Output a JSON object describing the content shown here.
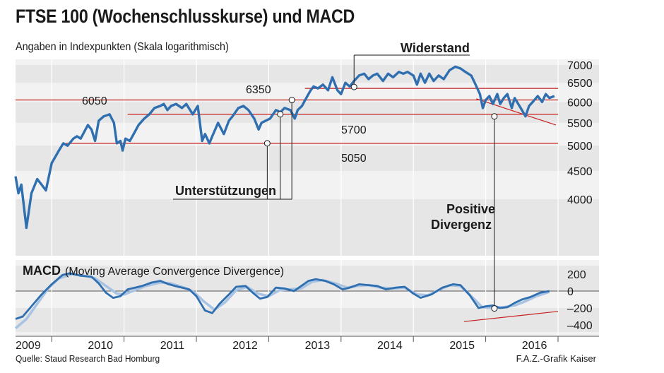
{
  "header": {
    "title": "FTSE 100 (Wochenschlusskurse) und MACD",
    "subtitle": "Angaben in Indexpunkten (Skala logarithmisch)"
  },
  "footer": {
    "source": "Quelle: Staud Research Bad Homburg",
    "credit": "F.A.Z.-Grafik Kaiser"
  },
  "colors": {
    "price_line": "#2f6fb0",
    "macd_line": "#2f6fb0",
    "signal_line": "#a9c3e3",
    "level_line": "#c81e1e",
    "band": "#e6e6e6"
  },
  "chart_data": [
    {
      "type": "line",
      "title": "FTSE 100 (Wochenschlusskurse)",
      "ylabel": "Angaben in Indexpunkten (Skala logarithmisch)",
      "yscale": "log",
      "ylim": [
        3450,
        7100
      ],
      "yticks": [
        4000,
        4500,
        5000,
        5500,
        6000,
        6500,
        7000
      ],
      "xlim": [
        2009.0,
        2016.5
      ],
      "x_tick_labels": [
        "2009",
        "2010",
        "2011",
        "2012",
        "2013",
        "2014",
        "2015",
        "2016"
      ],
      "grid": false,
      "series": [
        {
          "values": [
            [
              2009.0,
              4400
            ],
            [
              2009.04,
              4100
            ],
            [
              2009.08,
              4250
            ],
            [
              2009.15,
              3550
            ],
            [
              2009.22,
              4100
            ],
            [
              2009.3,
              4350
            ],
            [
              2009.36,
              4250
            ],
            [
              2009.42,
              4150
            ],
            [
              2009.5,
              4650
            ],
            [
              2009.6,
              4900
            ],
            [
              2009.66,
              5050
            ],
            [
              2009.72,
              5000
            ],
            [
              2009.8,
              5150
            ],
            [
              2009.85,
              5200
            ],
            [
              2009.9,
              5150
            ],
            [
              2010.0,
              5450
            ],
            [
              2010.05,
              5350
            ],
            [
              2010.1,
              5100
            ],
            [
              2010.15,
              5550
            ],
            [
              2010.22,
              5650
            ],
            [
              2010.3,
              5700
            ],
            [
              2010.36,
              5500
            ],
            [
              2010.4,
              5050
            ],
            [
              2010.45,
              5100
            ],
            [
              2010.48,
              4900
            ],
            [
              2010.52,
              5150
            ],
            [
              2010.58,
              5100
            ],
            [
              2010.65,
              5300
            ],
            [
              2010.7,
              5450
            ],
            [
              2010.78,
              5600
            ],
            [
              2010.85,
              5700
            ],
            [
              2010.92,
              5850
            ],
            [
              2011.0,
              5900
            ],
            [
              2011.05,
              5950
            ],
            [
              2011.1,
              5800
            ],
            [
              2011.15,
              5900
            ],
            [
              2011.22,
              5950
            ],
            [
              2011.3,
              5850
            ],
            [
              2011.36,
              5950
            ],
            [
              2011.45,
              5700
            ],
            [
              2011.52,
              5900
            ],
            [
              2011.58,
              5100
            ],
            [
              2011.62,
              5250
            ],
            [
              2011.68,
              5050
            ],
            [
              2011.72,
              5200
            ],
            [
              2011.8,
              5500
            ],
            [
              2011.88,
              5250
            ],
            [
              2011.95,
              5550
            ],
            [
              2012.0,
              5650
            ],
            [
              2012.08,
              5850
            ],
            [
              2012.15,
              5900
            ],
            [
              2012.22,
              5800
            ],
            [
              2012.3,
              5600
            ],
            [
              2012.36,
              5350
            ],
            [
              2012.4,
              5500
            ],
            [
              2012.46,
              5550
            ],
            [
              2012.52,
              5600
            ],
            [
              2012.6,
              5800
            ],
            [
              2012.66,
              5750
            ],
            [
              2012.72,
              5850
            ],
            [
              2012.8,
              5800
            ],
            [
              2012.86,
              5600
            ],
            [
              2012.9,
              5800
            ],
            [
              2012.96,
              5900
            ],
            [
              2013.02,
              6100
            ],
            [
              2013.08,
              6300
            ],
            [
              2013.12,
              6400
            ],
            [
              2013.18,
              6350
            ],
            [
              2013.25,
              6450
            ],
            [
              2013.32,
              6300
            ],
            [
              2013.38,
              6650
            ],
            [
              2013.45,
              6300
            ],
            [
              2013.5,
              6200
            ],
            [
              2013.56,
              6500
            ],
            [
              2013.62,
              6400
            ],
            [
              2013.68,
              6550
            ],
            [
              2013.75,
              6700
            ],
            [
              2013.82,
              6750
            ],
            [
              2013.88,
              6600
            ],
            [
              2013.94,
              6700
            ],
            [
              2014.0,
              6750
            ],
            [
              2014.08,
              6550
            ],
            [
              2014.15,
              6750
            ],
            [
              2014.22,
              6650
            ],
            [
              2014.3,
              6800
            ],
            [
              2014.36,
              6750
            ],
            [
              2014.42,
              6800
            ],
            [
              2014.5,
              6700
            ],
            [
              2014.55,
              6450
            ],
            [
              2014.6,
              6750
            ],
            [
              2014.66,
              6500
            ],
            [
              2014.72,
              6750
            ],
            [
              2014.78,
              6550
            ],
            [
              2014.85,
              6700
            ],
            [
              2014.92,
              6600
            ],
            [
              2015.0,
              6850
            ],
            [
              2015.08,
              6950
            ],
            [
              2015.15,
              6900
            ],
            [
              2015.22,
              6800
            ],
            [
              2015.3,
              6700
            ],
            [
              2015.36,
              6450
            ],
            [
              2015.42,
              6200
            ],
            [
              2015.46,
              5850
            ],
            [
              2015.5,
              6050
            ],
            [
              2015.55,
              6150
            ],
            [
              2015.6,
              5950
            ],
            [
              2015.66,
              6200
            ],
            [
              2015.7,
              5950
            ],
            [
              2015.75,
              6100
            ],
            [
              2015.8,
              6200
            ],
            [
              2015.86,
              5850
            ],
            [
              2015.9,
              6100
            ],
            [
              2015.95,
              5950
            ],
            [
              2016.0,
              5800
            ],
            [
              2016.05,
              5650
            ],
            [
              2016.1,
              5900
            ],
            [
              2016.15,
              6000
            ],
            [
              2016.22,
              6150
            ],
            [
              2016.28,
              6000
            ],
            [
              2016.33,
              6200
            ],
            [
              2016.38,
              6100
            ],
            [
              2016.45,
              6150
            ]
          ]
        }
      ],
      "annotations": {
        "widerstand": "Widerstand",
        "unterstuetzungen": "Unterstützungen",
        "positive_divergenz_1": "Positive",
        "positive_divergenz_2": "Divergenz"
      },
      "levels": [
        {
          "label": "6350",
          "value": 6350
        },
        {
          "label": "6050",
          "value": 6050
        },
        {
          "label": "5700",
          "value": 5700
        },
        {
          "label": "5050",
          "value": 5050
        }
      ]
    },
    {
      "type": "line",
      "title": "MACD",
      "subtitle": "(Moving Average Convergence Divergence)",
      "ylim": [
        -480,
        280
      ],
      "yticks": [
        -400,
        -200,
        0,
        200
      ],
      "ytick_labels": [
        "–400",
        "–200",
        "0",
        "200"
      ],
      "xlim": [
        2009.0,
        2016.5
      ],
      "grid": false,
      "series": [
        {
          "values": [
            [
              2009.0,
              -330
            ],
            [
              2009.1,
              -300
            ],
            [
              2009.2,
              -200
            ],
            [
              2009.35,
              -50
            ],
            [
              2009.5,
              80
            ],
            [
              2009.65,
              190
            ],
            [
              2009.75,
              210
            ],
            [
              2009.9,
              180
            ],
            [
              2010.05,
              170
            ],
            [
              2010.15,
              90
            ],
            [
              2010.25,
              -20
            ],
            [
              2010.35,
              -80
            ],
            [
              2010.45,
              -60
            ],
            [
              2010.55,
              20
            ],
            [
              2010.65,
              40
            ],
            [
              2010.75,
              60
            ],
            [
              2010.88,
              100
            ],
            [
              2011.0,
              120
            ],
            [
              2011.12,
              80
            ],
            [
              2011.25,
              50
            ],
            [
              2011.4,
              20
            ],
            [
              2011.5,
              -60
            ],
            [
              2011.62,
              -230
            ],
            [
              2011.72,
              -260
            ],
            [
              2011.82,
              -150
            ],
            [
              2011.95,
              -40
            ],
            [
              2012.05,
              50
            ],
            [
              2012.18,
              60
            ],
            [
              2012.28,
              -20
            ],
            [
              2012.38,
              -90
            ],
            [
              2012.48,
              -70
            ],
            [
              2012.6,
              40
            ],
            [
              2012.72,
              30
            ],
            [
              2012.85,
              0
            ],
            [
              2012.95,
              60
            ],
            [
              2013.05,
              120
            ],
            [
              2013.15,
              140
            ],
            [
              2013.28,
              120
            ],
            [
              2013.4,
              80
            ],
            [
              2013.52,
              20
            ],
            [
              2013.62,
              40
            ],
            [
              2013.75,
              80
            ],
            [
              2013.88,
              70
            ],
            [
              2014.0,
              60
            ],
            [
              2014.12,
              20
            ],
            [
              2014.25,
              40
            ],
            [
              2014.38,
              50
            ],
            [
              2014.5,
              -30
            ],
            [
              2014.6,
              -80
            ],
            [
              2014.75,
              -40
            ],
            [
              2014.9,
              40
            ],
            [
              2015.05,
              80
            ],
            [
              2015.15,
              70
            ],
            [
              2015.28,
              -50
            ],
            [
              2015.4,
              -200
            ],
            [
              2015.5,
              -180
            ],
            [
              2015.6,
              -170
            ],
            [
              2015.7,
              -200
            ],
            [
              2015.8,
              -190
            ],
            [
              2015.9,
              -140
            ],
            [
              2016.0,
              -100
            ],
            [
              2016.12,
              -70
            ],
            [
              2016.25,
              -20
            ],
            [
              2016.38,
              0
            ]
          ]
        },
        {
          "values": [
            [
              2009.0,
              -440
            ],
            [
              2009.15,
              -330
            ],
            [
              2009.3,
              -150
            ],
            [
              2009.45,
              30
            ],
            [
              2009.6,
              150
            ],
            [
              2009.78,
              200
            ],
            [
              2009.95,
              180
            ],
            [
              2010.1,
              150
            ],
            [
              2010.25,
              60
            ],
            [
              2010.4,
              -30
            ],
            [
              2010.5,
              -40
            ],
            [
              2010.62,
              0
            ],
            [
              2010.8,
              60
            ],
            [
              2011.0,
              100
            ],
            [
              2011.15,
              90
            ],
            [
              2011.3,
              50
            ],
            [
              2011.45,
              0
            ],
            [
              2011.6,
              -120
            ],
            [
              2011.75,
              -220
            ],
            [
              2011.9,
              -130
            ],
            [
              2012.05,
              10
            ],
            [
              2012.2,
              50
            ],
            [
              2012.35,
              -30
            ],
            [
              2012.5,
              -60
            ],
            [
              2012.65,
              10
            ],
            [
              2012.8,
              20
            ],
            [
              2012.95,
              30
            ],
            [
              2013.1,
              110
            ],
            [
              2013.25,
              130
            ],
            [
              2013.42,
              90
            ],
            [
              2013.58,
              40
            ],
            [
              2013.72,
              60
            ],
            [
              2013.88,
              70
            ],
            [
              2014.05,
              40
            ],
            [
              2014.2,
              30
            ],
            [
              2014.38,
              40
            ],
            [
              2014.55,
              -40
            ],
            [
              2014.7,
              -50
            ],
            [
              2014.85,
              10
            ],
            [
              2015.0,
              70
            ],
            [
              2015.15,
              60
            ],
            [
              2015.3,
              -60
            ],
            [
              2015.45,
              -190
            ],
            [
              2015.6,
              -200
            ],
            [
              2015.75,
              -190
            ],
            [
              2015.9,
              -170
            ],
            [
              2016.05,
              -120
            ],
            [
              2016.2,
              -60
            ],
            [
              2016.38,
              -10
            ]
          ]
        }
      ]
    }
  ]
}
